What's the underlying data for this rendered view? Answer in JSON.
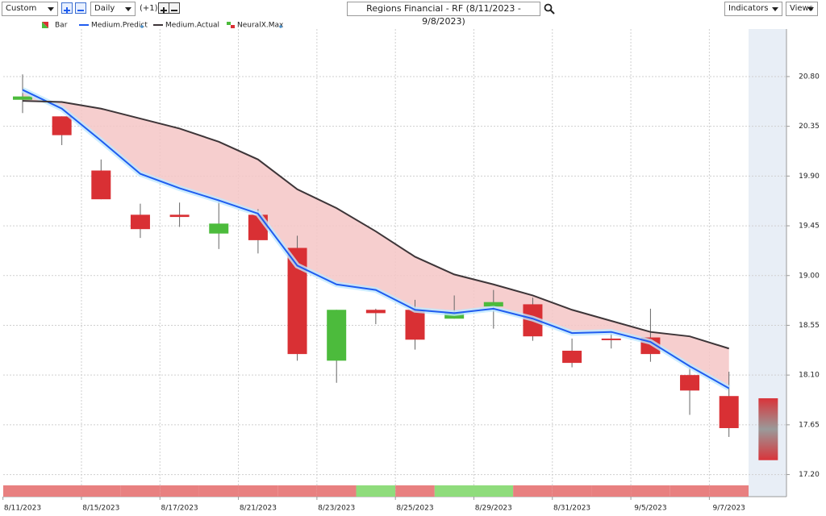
{
  "toolbar": {
    "range": "Custom",
    "interval": "Daily",
    "offset": "(+1)",
    "title": "Regions Financial - RF (8/11/2023 - 9/8/2023)",
    "indicators": "Indicators",
    "views": "Views"
  },
  "chart_data": {
    "type": "candlestick",
    "bar_name": "Bar",
    "signal_name": "NeuralX.Max",
    "categories": [
      "8/11/2023",
      null,
      "8/15/2023",
      null,
      "8/17/2023",
      null,
      "8/21/2023",
      null,
      "8/23/2023",
      null,
      "8/25/2023",
      null,
      "8/29/2023",
      null,
      "8/31/2023",
      null,
      "9/5/2023",
      null,
      "9/7/2023",
      null
    ],
    "open": [
      20.59,
      20.44,
      19.95,
      19.55,
      19.55,
      19.38,
      19.55,
      19.25,
      18.23,
      18.69,
      18.69,
      18.61,
      18.72,
      18.74,
      18.32,
      18.43,
      18.44,
      18.1,
      17.91,
      null
    ],
    "high": [
      20.82,
      20.44,
      20.05,
      19.65,
      19.66,
      19.69,
      19.6,
      19.36,
      18.69,
      18.7,
      18.78,
      18.82,
      18.87,
      18.8,
      18.43,
      18.49,
      18.7,
      18.19,
      18.13,
      null
    ],
    "low": [
      20.47,
      20.18,
      19.69,
      19.34,
      19.44,
      19.24,
      19.2,
      18.23,
      18.03,
      18.56,
      18.33,
      18.61,
      18.52,
      18.41,
      18.17,
      18.34,
      18.22,
      17.74,
      17.54,
      null
    ],
    "close": [
      20.62,
      20.27,
      19.69,
      19.42,
      19.53,
      19.47,
      19.32,
      18.29,
      18.69,
      18.66,
      18.42,
      18.66,
      18.76,
      18.45,
      18.21,
      18.42,
      18.29,
      17.96,
      17.62,
      null
    ],
    "up_color": "#4cbb3c",
    "down_color": "#d93034",
    "forecast": {
      "high": 17.89,
      "low": 17.33
    },
    "series": [
      {
        "name": "Medium.Predict",
        "color": "#1f5cf0",
        "values": [
          20.68,
          20.51,
          20.22,
          19.92,
          19.79,
          19.68,
          19.56,
          19.09,
          18.92,
          18.87,
          18.69,
          18.66,
          18.7,
          18.61,
          18.48,
          18.49,
          18.4,
          18.18,
          17.98,
          null
        ]
      },
      {
        "name": "Medium.Actual",
        "color": "#3d3538",
        "values": [
          20.58,
          20.57,
          20.51,
          20.42,
          20.33,
          20.21,
          20.05,
          19.78,
          19.61,
          19.4,
          19.17,
          19.01,
          18.92,
          18.82,
          18.69,
          18.59,
          18.49,
          18.45,
          18.34,
          null
        ]
      }
    ],
    "spread_color": "#f5c6c6",
    "signal_colors": [
      "#e88080",
      "#e88080",
      "#e88080",
      "#e88080",
      "#e88080",
      "#e88080",
      "#e88080",
      "#e88080",
      "#e88080",
      "#8fdc7c",
      "#e88080",
      "#8fdc7c",
      "#8fdc7c",
      "#e88080",
      "#e88080",
      "#e88080",
      "#e88080",
      "#e88080",
      "#e88080"
    ],
    "ylim": [
      17.0,
      21.23
    ],
    "yticks": [
      {
        "value": 17.2,
        "label": "17.20"
      },
      {
        "value": 17.65,
        "label": "17.65"
      },
      {
        "value": 18.1,
        "label": "18.10"
      },
      {
        "value": 18.55,
        "label": "18.55"
      },
      {
        "value": 19.0,
        "label": "19.00"
      },
      {
        "value": 19.45,
        "label": "19.45"
      },
      {
        "value": 19.9,
        "label": "19.90"
      },
      {
        "value": 20.35,
        "label": "20.35"
      },
      {
        "value": 20.8,
        "label": "20.80"
      }
    ],
    "grid": true
  }
}
